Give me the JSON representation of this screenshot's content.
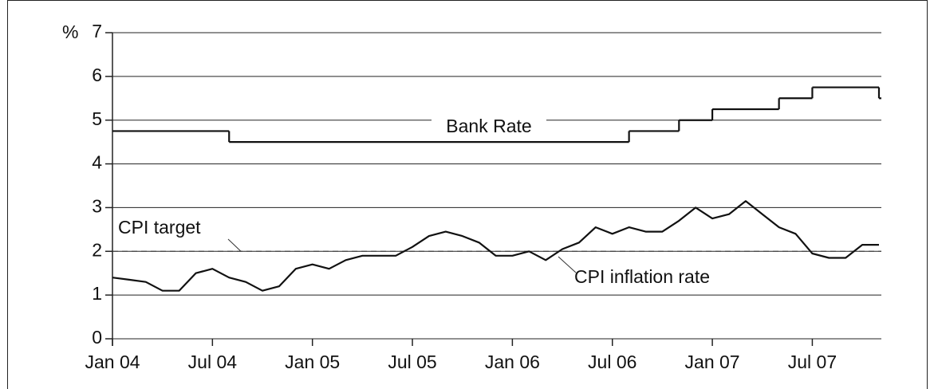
{
  "chart_data": {
    "type": "line",
    "y_label": "%",
    "xlim": [
      "2004-01",
      "2007-11"
    ],
    "xticks": [
      {
        "value": "2004-01",
        "label": "Jan 04"
      },
      {
        "value": "2004-07",
        "label": "Jul 04"
      },
      {
        "value": "2005-01",
        "label": "Jan 05"
      },
      {
        "value": "2005-07",
        "label": "Jul 05"
      },
      {
        "value": "2006-01",
        "label": "Jan 06"
      },
      {
        "value": "2006-07",
        "label": "Jul 06"
      },
      {
        "value": "2007-01",
        "label": "Jan 07"
      },
      {
        "value": "2007-07",
        "label": "Jul 07"
      }
    ],
    "ylim": [
      0,
      7
    ],
    "yticks": [
      0,
      1,
      2,
      3,
      4,
      5,
      6,
      7
    ],
    "grid": true,
    "series": [
      {
        "name": "Bank Rate",
        "style": "step",
        "color": "#111111",
        "x": [
          "2004-01",
          "2004-08",
          "2006-08",
          "2006-11",
          "2007-01",
          "2007-05",
          "2007-07",
          "2007-11"
        ],
        "values": [
          4.75,
          4.5,
          4.75,
          5.0,
          5.25,
          5.5,
          5.75,
          5.5
        ]
      },
      {
        "name": "CPI inflation rate",
        "style": "line",
        "color": "#111111",
        "x": [
          "2004-01",
          "2004-02",
          "2004-03",
          "2004-04",
          "2004-05",
          "2004-06",
          "2004-07",
          "2004-08",
          "2004-09",
          "2004-10",
          "2004-11",
          "2004-12",
          "2005-01",
          "2005-02",
          "2005-03",
          "2005-04",
          "2005-05",
          "2005-06",
          "2005-07",
          "2005-08",
          "2005-09",
          "2005-10",
          "2005-11",
          "2005-12",
          "2006-01",
          "2006-02",
          "2006-03",
          "2006-04",
          "2006-05",
          "2006-06",
          "2006-07",
          "2006-08",
          "2006-09",
          "2006-10",
          "2006-11",
          "2006-12",
          "2007-01",
          "2007-02",
          "2007-03",
          "2007-04",
          "2007-05",
          "2007-06",
          "2007-07",
          "2007-08",
          "2007-09",
          "2007-10",
          "2007-11"
        ],
        "values": [
          1.4,
          1.35,
          1.3,
          1.1,
          1.1,
          1.5,
          1.6,
          1.4,
          1.3,
          1.1,
          1.2,
          1.6,
          1.7,
          1.6,
          1.8,
          1.9,
          1.9,
          1.9,
          2.1,
          2.35,
          2.45,
          2.35,
          2.2,
          1.9,
          1.9,
          2.0,
          1.8,
          2.05,
          2.2,
          2.55,
          2.4,
          2.55,
          2.45,
          2.45,
          2.7,
          3.0,
          2.75,
          2.85,
          3.15,
          2.85,
          2.55,
          2.4,
          1.95,
          1.85,
          1.85,
          2.15,
          2.15
        ]
      }
    ],
    "target": {
      "label": "CPI target",
      "value": 2
    }
  }
}
